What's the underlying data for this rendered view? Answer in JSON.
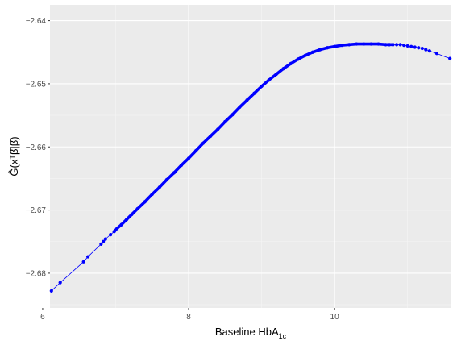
{
  "chart_data": {
    "type": "line",
    "xlabel": "Baseline HbA",
    "xlabel_subscript": "1c",
    "ylabel": "Ĝ(xᵀβ̂|β̂)",
    "xlim": [
      6.1,
      11.6
    ],
    "ylim": [
      -2.6855,
      -2.6375
    ],
    "x_ticks": [
      6,
      8,
      10
    ],
    "x_tick_labels": [
      "6",
      "8",
      "10"
    ],
    "y_ticks": [
      -2.68,
      -2.67,
      -2.66,
      -2.65,
      -2.64
    ],
    "y_tick_labels": [
      "−2.68",
      "−2.67",
      "−2.66",
      "−2.65",
      "−2.64"
    ],
    "grid": true,
    "series": [
      {
        "color": "#0000ff",
        "marker": "point",
        "x": [
          6.12,
          6.24,
          6.56,
          6.62,
          6.8,
          6.83,
          6.86,
          6.93,
          6.98,
          7.02,
          7.08,
          7.15,
          7.22,
          7.3,
          7.4,
          7.5,
          7.6,
          7.7,
          7.8,
          7.9,
          8.0,
          8.1,
          8.2,
          8.3,
          8.4,
          8.5,
          8.6,
          8.7,
          8.8,
          8.9,
          9.0,
          9.1,
          9.2,
          9.3,
          9.4,
          9.5,
          9.6,
          9.7,
          9.8,
          9.9,
          10.0,
          10.1,
          10.2,
          10.3,
          10.4,
          10.5,
          10.6,
          10.7,
          10.75,
          10.8,
          10.85,
          10.9,
          10.95,
          11.0,
          11.05,
          11.1,
          11.15,
          11.2,
          11.25,
          11.3,
          11.4,
          11.58
        ],
        "y": [
          -2.6828,
          -2.6815,
          -2.6782,
          -2.6774,
          -2.6754,
          -2.675,
          -2.6746,
          -2.6739,
          -2.6734,
          -2.6729,
          -2.6723,
          -2.6715,
          -2.6707,
          -2.6698,
          -2.6687,
          -2.6675,
          -2.6664,
          -2.6652,
          -2.6641,
          -2.6629,
          -2.6618,
          -2.6606,
          -2.6594,
          -2.6583,
          -2.6572,
          -2.656,
          -2.6549,
          -2.6537,
          -2.6526,
          -2.6515,
          -2.6504,
          -2.6494,
          -2.6485,
          -2.6476,
          -2.6468,
          -2.6461,
          -2.6455,
          -2.645,
          -2.6446,
          -2.6443,
          -2.6441,
          -2.6439,
          -2.6438,
          -2.6437,
          -2.6437,
          -2.6437,
          -2.6437,
          -2.6438,
          -2.6438,
          -2.6438,
          -2.6438,
          -2.6438,
          -2.6439,
          -2.644,
          -2.6441,
          -2.6442,
          -2.6443,
          -2.6444,
          -2.6446,
          -2.6448,
          -2.6452,
          -2.646
        ]
      }
    ]
  }
}
